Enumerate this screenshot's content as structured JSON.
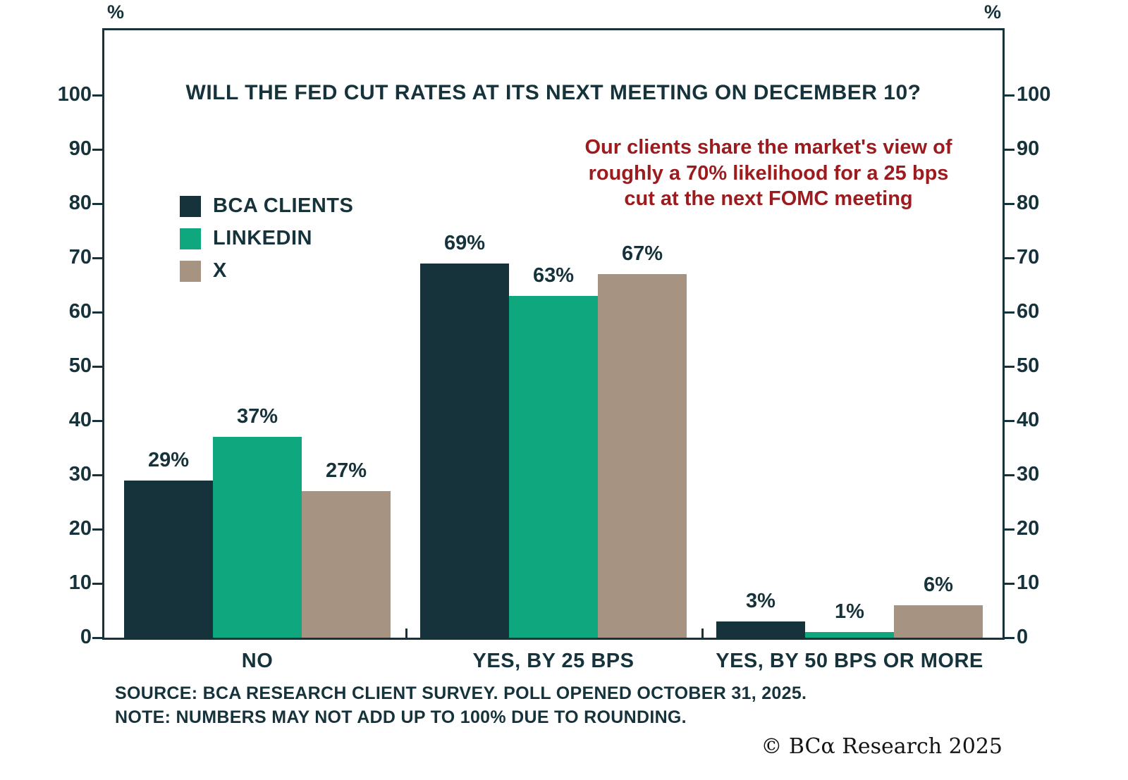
{
  "chart_data": {
    "type": "bar",
    "title": "WILL THE FED CUT RATES AT ITS NEXT MEETING ON DECEMBER 10?",
    "categories": [
      "NO",
      "YES, BY 25 BPS",
      "YES, BY 50 BPS OR MORE"
    ],
    "series": [
      {
        "name": "BCA CLIENTS",
        "color": "#16333B",
        "values": [
          29,
          69,
          3
        ]
      },
      {
        "name": "LINKEDIN",
        "color": "#0EA77E",
        "values": [
          37,
          63,
          1
        ]
      },
      {
        "name": "X",
        "color": "#A69382",
        "values": [
          27,
          67,
          6
        ]
      }
    ],
    "value_label_format": "{v}%",
    "ylim": [
      0,
      112
    ],
    "yticks": [
      0,
      10,
      20,
      30,
      40,
      50,
      60,
      70,
      80,
      90,
      100
    ],
    "y_axis_unit": "%",
    "grid": false,
    "legend_position": "top-left",
    "annotation": {
      "color": "#9C1B1E",
      "text_lines": [
        "Our clients share the market's view of",
        "roughly a 70% likelihood for a 25 bps",
        "cut at the next FOMC meeting"
      ]
    },
    "source": "SOURCE: BCA RESEARCH CLIENT SURVEY. POLL OPENED OCTOBER 31, 2025.",
    "note": "NOTE: NUMBERS MAY NOT ADD UP TO 100% DUE TO ROUNDING.",
    "copyright": "© BCα Research 2025"
  }
}
